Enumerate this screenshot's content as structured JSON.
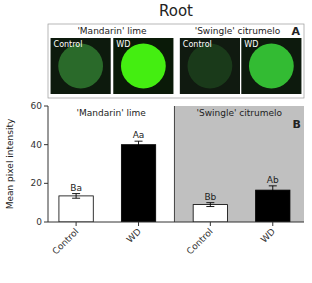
{
  "chart_data": {
    "type": "bar",
    "title": "Root",
    "panel_labels": [
      "A",
      "B"
    ],
    "groups": [
      {
        "name": "'Mandarin' lime",
        "color": "white"
      },
      {
        "name": "'Swingle' citrumelo",
        "color": "#c0c0c0"
      }
    ],
    "images": [
      {
        "label": "Control",
        "background": "#0d1a0d",
        "color": "#2a6a2a"
      },
      {
        "label": "WD",
        "background": "#0a1a08",
        "color": "#44ee11"
      },
      {
        "label": "Control",
        "background": "#101a10",
        "color": "#1a3a1a"
      },
      {
        "label": "WD",
        "background": "#0d1a0d",
        "color": "#33bb33"
      }
    ],
    "categories": [
      "Control",
      "WD",
      "Control",
      "WD"
    ],
    "group": [
      1,
      1,
      2,
      2
    ],
    "values": [
      13.5,
      40.0,
      9.0,
      16.5
    ],
    "errors": [
      1.2,
      1.8,
      1.0,
      2.2
    ],
    "letters": [
      "Ba",
      "Aa",
      "Bb",
      "Ab"
    ],
    "colors": [
      "white",
      "black",
      "white",
      "black"
    ],
    "ylabel": "Mean pixel intensity",
    "ylim": [
      0,
      60
    ],
    "yticks": [
      0,
      20,
      40,
      60
    ]
  }
}
